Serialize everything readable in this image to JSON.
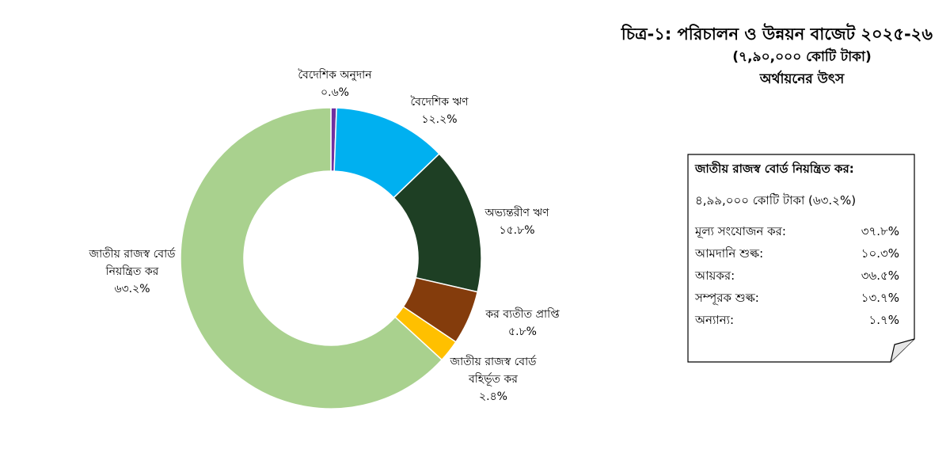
{
  "chart_data": {
    "type": "pie",
    "donut": true,
    "title": "চিত্র-১: পরিচালন ও উন্নয়ন বাজেট ২০২৫-২৬",
    "subtitle": "(৭,৯০,০০০ কোটি টাকা)",
    "subtitle2": "অর্থায়নের উৎস",
    "categories": [
      "বৈদেশিক অনুদান",
      "বৈদেশিক ঋণ",
      "অভ্যন্তরীণ ঋণ",
      "কর ব্যতীত প্রাপ্তি",
      "জাতীয় রাজস্ব বোর্ড বহির্ভূত কর",
      "জাতীয় রাজস্ব বোর্ড নিয়ন্ত্রিত কর"
    ],
    "values": [
      0.6,
      12.2,
      15.8,
      5.8,
      2.4,
      63.2
    ],
    "slices": [
      {
        "name_lines": [
          "বৈদেশিক অনুদান"
        ],
        "value": 0.6,
        "value_label": "০.৬%",
        "color": "#7030A0"
      },
      {
        "name_lines": [
          "বৈদেশিক ঋণ"
        ],
        "value": 12.2,
        "value_label": "১২.২%",
        "color": "#00B0F0"
      },
      {
        "name_lines": [
          "অভ্যন্তরীণ ঋণ"
        ],
        "value": 15.8,
        "value_label": "১৫.৮%",
        "color": "#1E3F24"
      },
      {
        "name_lines": [
          "কর ব্যতীত প্রাপ্তি"
        ],
        "value": 5.8,
        "value_label": "৫.৮%",
        "color": "#843C0C"
      },
      {
        "name_lines": [
          "জাতীয় রাজস্ব বোর্ড",
          "বহির্ভূত কর"
        ],
        "value": 2.4,
        "value_label": "২.৪%",
        "color": "#FFC000"
      },
      {
        "name_lines": [
          "জাতীয় রাজস্ব বোর্ড",
          "নিয়ন্ত্রিত কর"
        ],
        "value": 63.2,
        "value_label": "৬৩.২%",
        "color": "#A9D18E"
      }
    ]
  },
  "info_box": {
    "heading": "জাতীয় রাজস্ব বোর্ড নিয়ন্ত্রিত কর:",
    "total": "৪,৯৯,০০০ কোটি টাকা (৬৩.২%)",
    "rows": [
      {
        "label": "মূল্য সংযোজন কর:",
        "value": "৩৭.৮%"
      },
      {
        "label": "আমদানি শুল্ক:",
        "value": "১০.৩%"
      },
      {
        "label": "আয়কর:",
        "value": "৩৬.৫%"
      },
      {
        "label": "সম্পূরক শুল্ক:",
        "value": "১৩.৭%"
      },
      {
        "label": "অন্যান্য:",
        "value": "১.৭%"
      }
    ]
  }
}
